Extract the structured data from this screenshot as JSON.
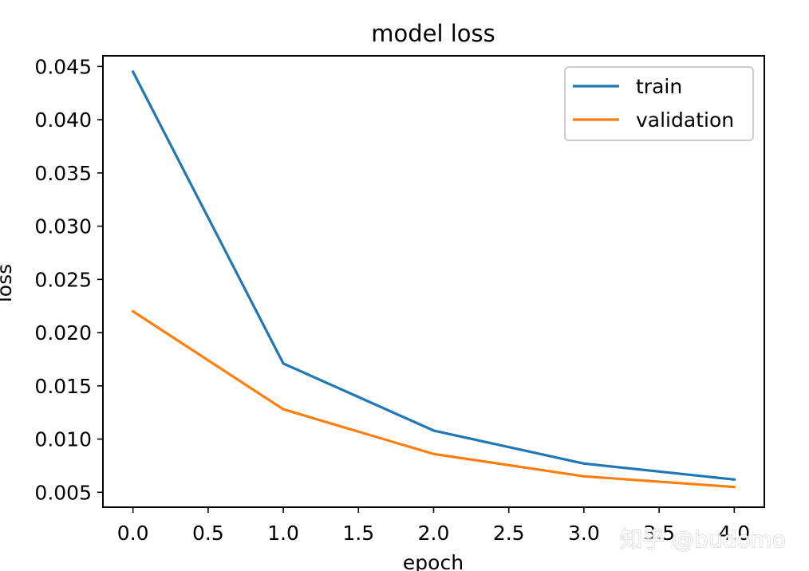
{
  "chart_data": {
    "type": "line",
    "title": "model loss",
    "xlabel": "epoch",
    "ylabel": "loss",
    "x": [
      0,
      1,
      2,
      3,
      4
    ],
    "series": [
      {
        "name": "train",
        "color": "#1f77b4",
        "values": [
          0.0445,
          0.0171,
          0.0108,
          0.0077,
          0.0062
        ]
      },
      {
        "name": "validation",
        "color": "#ff7f0e",
        "values": [
          0.022,
          0.0128,
          0.0086,
          0.0065,
          0.0055
        ]
      }
    ],
    "xlim": [
      -0.2,
      4.2
    ],
    "ylim": [
      0.0036,
      0.046
    ],
    "xticks": [
      0.0,
      0.5,
      1.0,
      1.5,
      2.0,
      2.5,
      3.0,
      3.5,
      4.0
    ],
    "xtick_labels": [
      "0.0",
      "0.5",
      "1.0",
      "1.5",
      "2.0",
      "2.5",
      "3.0",
      "3.5",
      "4.0"
    ],
    "yticks": [
      0.005,
      0.01,
      0.015,
      0.02,
      0.025,
      0.03,
      0.035,
      0.04,
      0.045
    ],
    "ytick_labels": [
      "0.005",
      "0.010",
      "0.015",
      "0.020",
      "0.025",
      "0.030",
      "0.035",
      "0.040",
      "0.045"
    ],
    "legend_position": "top-right",
    "grid": false
  },
  "watermark": "知乎 @budomo"
}
